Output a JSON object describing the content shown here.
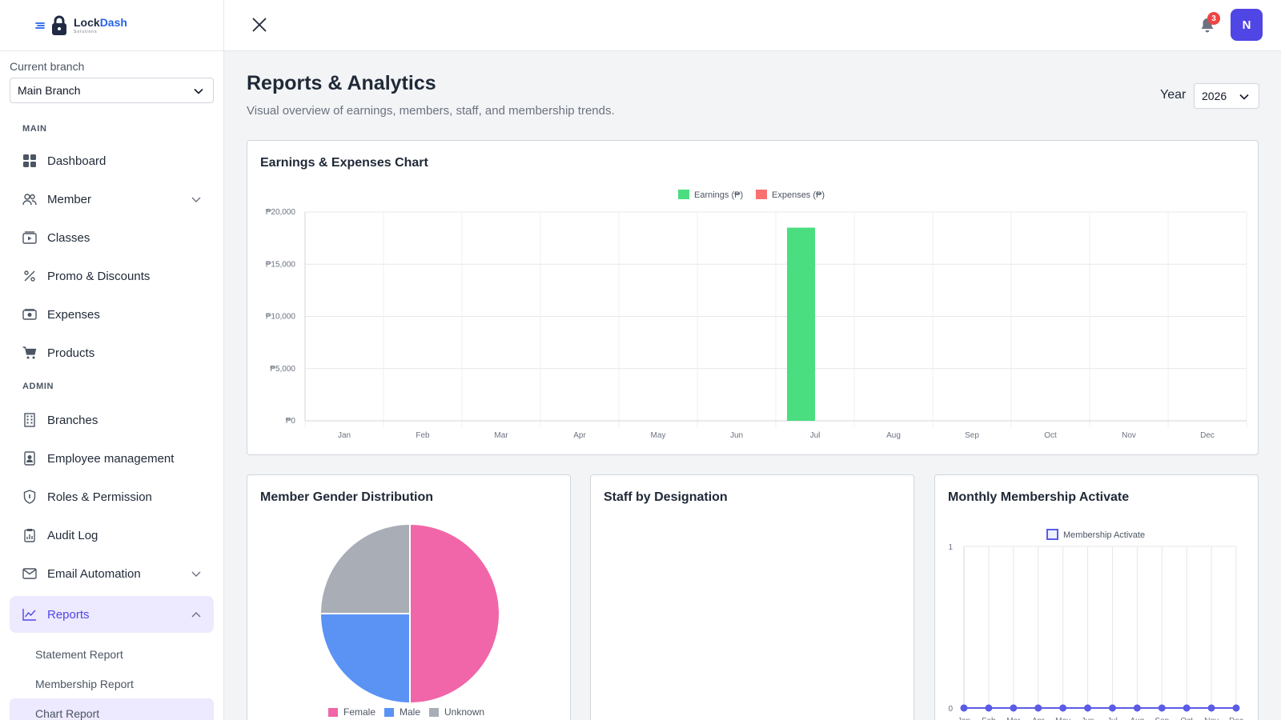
{
  "brand": {
    "name_part1": "Lock",
    "name_part2": "Dash",
    "subtitle": "Solutions"
  },
  "sidebar": {
    "branch_label": "Current branch",
    "branch_value": "Main Branch",
    "section_main": "MAIN",
    "section_admin": "ADMIN",
    "main_items": [
      {
        "label": "Dashboard",
        "icon": "grid-icon"
      },
      {
        "label": "Member",
        "icon": "users-icon",
        "expandable": true
      },
      {
        "label": "Classes",
        "icon": "video-icon"
      },
      {
        "label": "Promo & Discounts",
        "icon": "percent-icon"
      },
      {
        "label": "Expenses",
        "icon": "cash-icon"
      },
      {
        "label": "Products",
        "icon": "cart-icon"
      }
    ],
    "admin_items": [
      {
        "label": "Branches",
        "icon": "building-icon"
      },
      {
        "label": "Employee management",
        "icon": "badge-icon"
      },
      {
        "label": "Roles & Permission",
        "icon": "shield-icon"
      },
      {
        "label": "Audit Log",
        "icon": "clipboard-icon"
      },
      {
        "label": "Email Automation",
        "icon": "mail-icon",
        "expandable": true
      },
      {
        "label": "Reports",
        "icon": "chart-line-icon",
        "expandable": true,
        "active": true
      }
    ],
    "report_subitems": [
      "Statement Report",
      "Membership Report",
      "Chart Report"
    ]
  },
  "topbar": {
    "notification_count": "3",
    "avatar_initial": "N"
  },
  "page": {
    "title": "Reports & Analytics",
    "subtitle": "Visual overview of earnings, members, staff, and membership trends.",
    "year_label": "Year",
    "year_value": "2026"
  },
  "cards": {
    "earnings_title": "Earnings & Expenses Chart",
    "gender_title": "Member Gender Distribution",
    "staff_title": "Staff by Designation",
    "membership_title": "Monthly Membership Activate"
  },
  "colors": {
    "accent": "#4f46e5",
    "earnings": "#4ade80",
    "expenses": "#f87171",
    "female": "#f066a8",
    "male": "#5b93f5",
    "unknown": "#a9adb6",
    "membership": "#5b5be6"
  },
  "chart_data": [
    {
      "type": "bar",
      "categories": [
        "Jan",
        "Feb",
        "Mar",
        "Apr",
        "May",
        "Jun",
        "Jul",
        "Aug",
        "Sep",
        "Oct",
        "Nov",
        "Dec"
      ],
      "series": [
        {
          "name": "Earnings (₱)",
          "values": [
            0,
            0,
            0,
            0,
            0,
            0,
            18500,
            0,
            0,
            0,
            0,
            0
          ]
        },
        {
          "name": "Expenses (₱)",
          "values": [
            0,
            0,
            0,
            0,
            0,
            0,
            0,
            0,
            0,
            0,
            0,
            0
          ]
        }
      ],
      "yticks": [
        "₱0",
        "₱5,000",
        "₱10,000",
        "₱15,000",
        "₱20,000"
      ],
      "ylim": [
        0,
        20000
      ],
      "legend": "top-center",
      "grid": true
    },
    {
      "type": "pie",
      "labels": [
        "Female",
        "Male",
        "Unknown"
      ],
      "values": [
        50,
        25,
        25
      ],
      "legend": "bottom"
    },
    {
      "type": "line",
      "categories": [
        "Jan",
        "Feb",
        "Mar",
        "Apr",
        "May",
        "Jun",
        "Jul",
        "Aug",
        "Sep",
        "Oct",
        "Nov",
        "Dec"
      ],
      "series": [
        {
          "name": "Membership Activate",
          "values": [
            0,
            0,
            0,
            0,
            0,
            0,
            0,
            0,
            0,
            0,
            0,
            0
          ]
        }
      ],
      "yticks": [
        "0",
        "1"
      ],
      "ylim": [
        0,
        1
      ],
      "legend": "top-center",
      "grid": true
    }
  ]
}
